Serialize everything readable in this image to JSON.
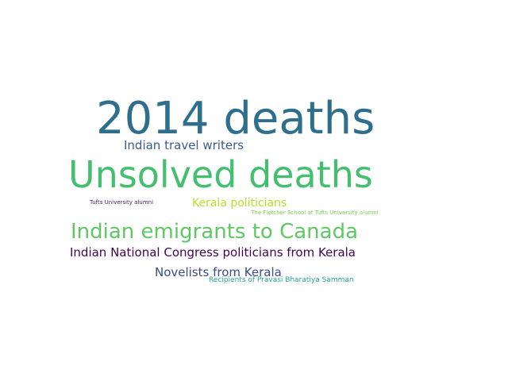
{
  "word_cloud": {
    "words": [
      {
        "text": "2014 deaths",
        "color": "#2e6f8e"
      },
      {
        "text": "Indian travel writers",
        "color": "#3b5c8c"
      },
      {
        "text": "Unsolved deaths",
        "color": "#44bf70"
      },
      {
        "text": "Tufts University alumni",
        "color": "#48186a"
      },
      {
        "text": "Kerala politicians",
        "color": "#b8de29"
      },
      {
        "text": "The Fletcher School at Tufts University alumni",
        "color": "#7ad151"
      },
      {
        "text": "Indian emigrants to Canada",
        "color": "#5ec962"
      },
      {
        "text": "Indian National Congress politicians from Kerala",
        "color": "#440154"
      },
      {
        "text": "Novelists from Kerala",
        "color": "#3e4a89"
      },
      {
        "text": "Recipients of Pravasi Bharatiya Samman",
        "color": "#26a69a"
      }
    ]
  }
}
